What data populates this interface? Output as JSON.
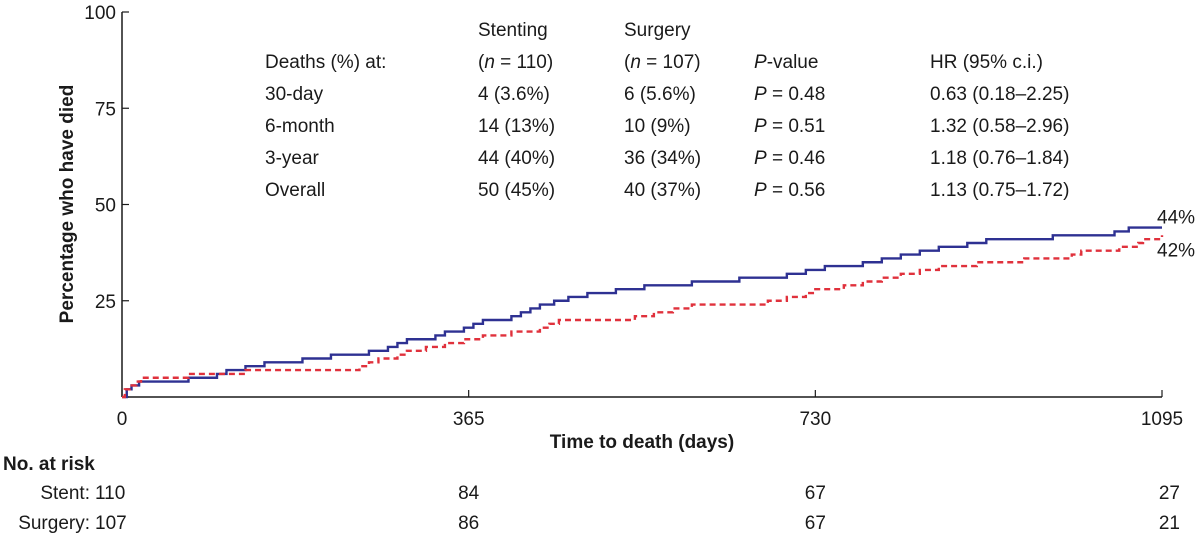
{
  "chart_data": {
    "type": "line",
    "title": "",
    "xlabel": "Time to death (days)",
    "ylabel": "Percentage who have died",
    "xlim": [
      0,
      1095
    ],
    "ylim": [
      0,
      100
    ],
    "xticks": [
      0,
      365,
      730,
      1095
    ],
    "yticks": [
      0,
      25,
      50,
      75,
      100
    ],
    "ytick_labels": [
      "",
      "25",
      "50",
      "75",
      "100"
    ],
    "series": [
      {
        "name": "Stenting",
        "color": "#2e3192",
        "style": "solid",
        "end_label": "44%",
        "x": [
          0,
          5,
          10,
          18,
          70,
          100,
          110,
          130,
          150,
          190,
          220,
          260,
          280,
          290,
          300,
          330,
          340,
          360,
          370,
          380,
          410,
          420,
          430,
          440,
          455,
          470,
          490,
          520,
          550,
          600,
          650,
          700,
          720,
          730,
          740,
          780,
          800,
          820,
          840,
          860,
          890,
          910,
          980,
          1045,
          1060,
          1065,
          1095
        ],
        "y": [
          0,
          2,
          3,
          4,
          5,
          6,
          7,
          8,
          9,
          10,
          11,
          12,
          13,
          14,
          15,
          16,
          17,
          18,
          19,
          20,
          21,
          22,
          23,
          24,
          25,
          26,
          27,
          28,
          29,
          30,
          31,
          32,
          33,
          33,
          34,
          35,
          36,
          37,
          38,
          39,
          40,
          41,
          42,
          43,
          44,
          44,
          44
        ]
      },
      {
        "name": "Surgery",
        "color": "#e0313c",
        "style": "dashed",
        "end_label": "42%",
        "x": [
          0,
          3,
          8,
          15,
          20,
          70,
          130,
          250,
          260,
          270,
          290,
          300,
          320,
          340,
          360,
          380,
          410,
          440,
          450,
          460,
          540,
          560,
          580,
          600,
          680,
          700,
          720,
          730,
          760,
          780,
          800,
          820,
          840,
          860,
          900,
          950,
          1000,
          1010,
          1050,
          1070,
          1075,
          1095
        ],
        "y": [
          0,
          2,
          3,
          4,
          5,
          6,
          7,
          8,
          9,
          10,
          11,
          12,
          13,
          14,
          15,
          16,
          17,
          18,
          19,
          20,
          21,
          22,
          23,
          24,
          25,
          26,
          27,
          28,
          29,
          30,
          31,
          32,
          33,
          34,
          35,
          36,
          37,
          38,
          39,
          40,
          41,
          42
        ]
      }
    ],
    "table": {
      "header1": [
        "",
        "Stenting",
        "Surgery",
        "",
        ""
      ],
      "header2": [
        "Deaths (%) at:",
        "(n = 110)",
        "(n = 107)",
        "P-value",
        "HR (95% c.i.)"
      ],
      "rows": [
        [
          "30-day",
          "4 (3.6%)",
          "6 (5.6%)",
          "P = 0.48",
          "0.63 (0.18–2.25)"
        ],
        [
          "6-month",
          "14 (13%)",
          "10 (9%)",
          "P = 0.51",
          "1.32 (0.58–2.96)"
        ],
        [
          "3-year",
          "44 (40%)",
          "36 (34%)",
          "P = 0.46",
          "1.18 (0.76–1.84)"
        ],
        [
          "Overall",
          "50 (45%)",
          "40 (37%)",
          "P = 0.56",
          "1.13 (0.75–1.72)"
        ]
      ]
    }
  },
  "risk_table": {
    "title": "No. at risk",
    "rows": [
      {
        "label": "Stent:",
        "values": [
          "110",
          "84",
          "67",
          "27"
        ]
      },
      {
        "label": "Surgery:",
        "values": [
          "107",
          "86",
          "67",
          "21"
        ]
      }
    ]
  }
}
